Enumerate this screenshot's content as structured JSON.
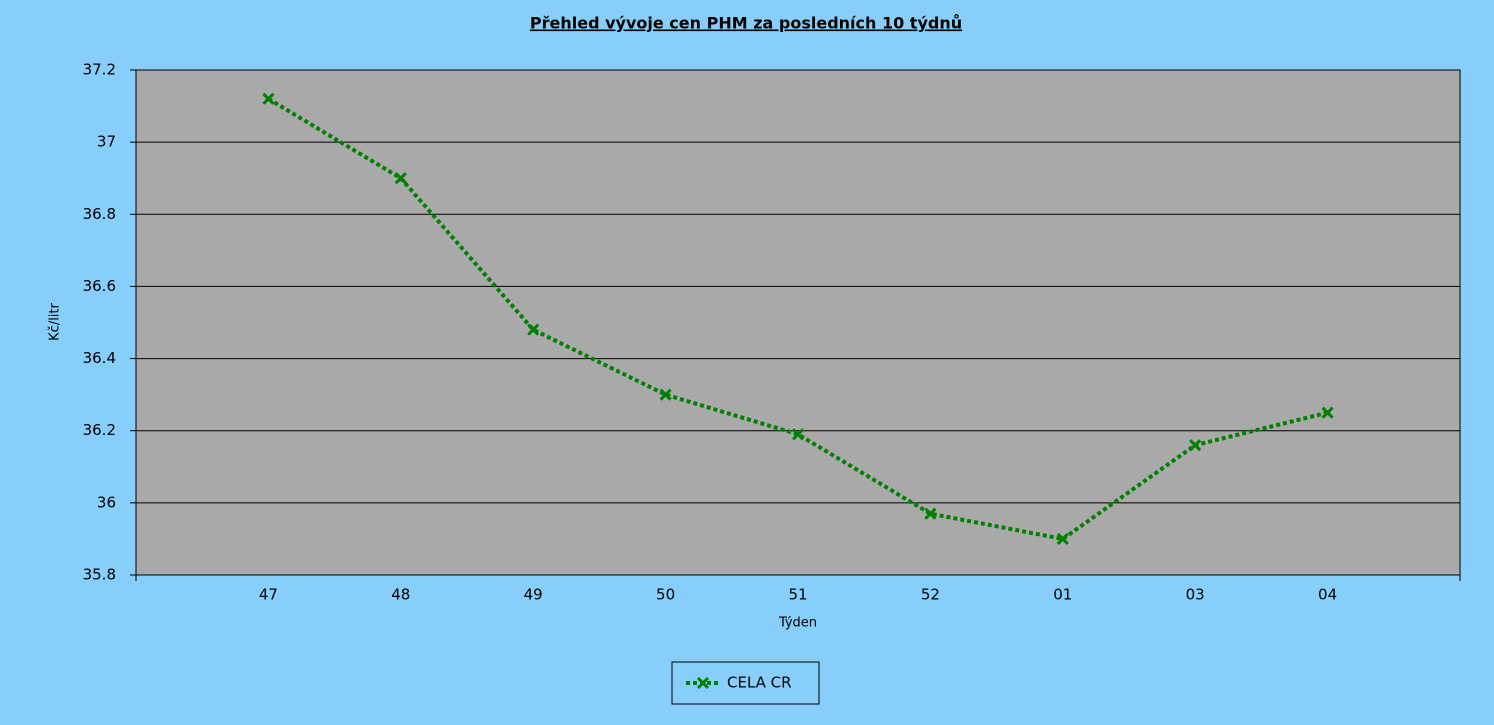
{
  "chart_data": {
    "type": "line",
    "title": "Přehled vývoje cen PHM za posledních 10 týdnů",
    "x_label": "Týden",
    "y_label": "Kč/litr",
    "categories": [
      "47",
      "48",
      "49",
      "50",
      "51",
      "52",
      "01",
      "03",
      "04"
    ],
    "series": [
      {
        "name": "CELA CR",
        "color": "#008000",
        "values": [
          37.12,
          36.9,
          36.48,
          36.3,
          36.19,
          35.97,
          35.9,
          36.16,
          36.25
        ]
      }
    ],
    "ylim": [
      35.8,
      37.2
    ],
    "yticks": [
      35.8,
      36,
      36.2,
      36.4,
      36.6,
      36.8,
      37,
      37.2
    ],
    "grid": true
  }
}
